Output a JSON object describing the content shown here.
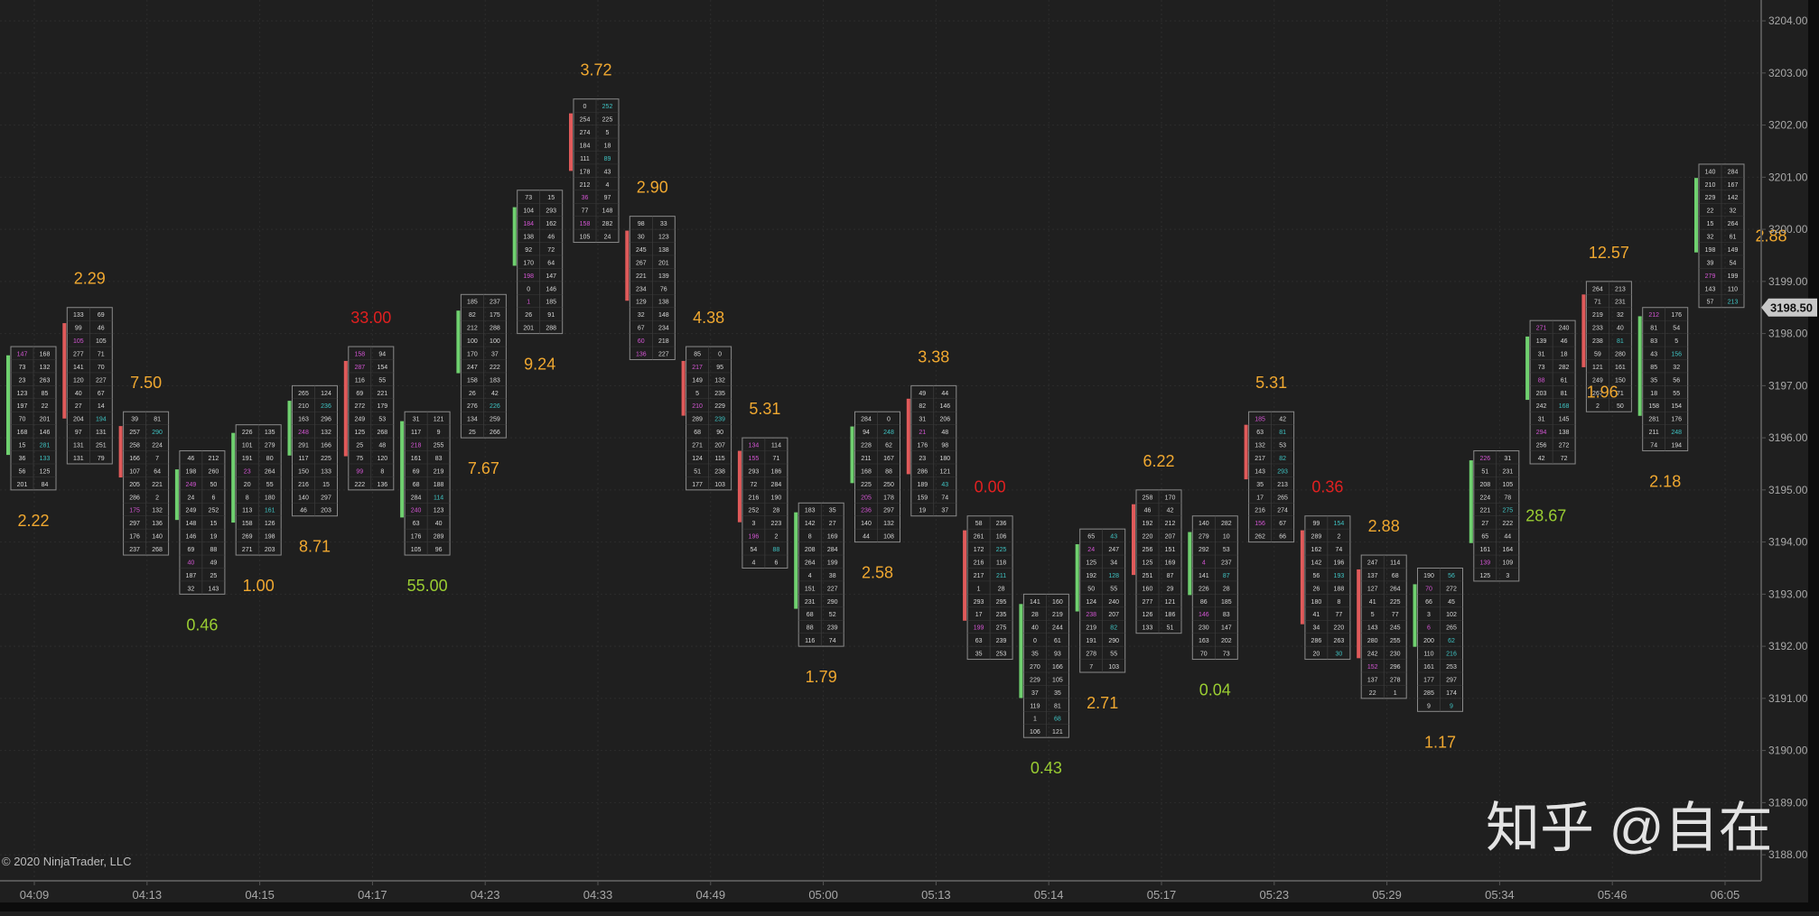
{
  "copyright": "© 2020 NinjaTrader, LLC",
  "watermark": "知乎 @自在",
  "colors": {
    "background": "#1f1f1f",
    "grid": "#2c2c2c",
    "axis": "#555555",
    "axis_text": "#a8a8a8",
    "cell_border": "#8a8a8a",
    "cell_text": "#d8d8d8",
    "bid_highlight": "#d455d4",
    "ask_highlight": "#3fc3c3",
    "up_bar": "#6fd06f",
    "down_bar": "#e05a5a",
    "label_green": "#9acd32",
    "label_orange": "#f0a830",
    "label_red": "#e02020",
    "price_tag_bg": "#c8c8c8",
    "price_tag_text": "#111111"
  },
  "chart_data": {
    "type": "footprint",
    "y_axis": {
      "min": 3187.5,
      "max": 3204.4,
      "ticks": [
        3188.0,
        3189.0,
        3190.0,
        3191.0,
        3192.0,
        3193.0,
        3194.0,
        3195.0,
        3196.0,
        3197.0,
        3198.0,
        3199.0,
        3200.0,
        3201.0,
        3202.0,
        3203.0,
        3204.0
      ],
      "tick_labels": [
        "3188.00",
        "3189.00",
        "3190.00",
        "3191.00",
        "3192.00",
        "3193.00",
        "3194.00",
        "3195.00",
        "3196.00",
        "3197.00",
        "3198.00",
        "3199.00",
        "3200.00",
        "3201.00",
        "3202.00",
        "3203.00",
        "3204.00"
      ],
      "last_price": "3198.50"
    },
    "x_axis": {
      "labels": [
        "04:09",
        "04:13",
        "04:15",
        "04:17",
        "04:23",
        "04:33",
        "04:49",
        "05:00",
        "05:13",
        "05:14",
        "05:17",
        "05:23",
        "05:29",
        "05:34",
        "05:46",
        "06:05"
      ]
    },
    "grid": true,
    "bars": [
      {
        "low": 3195.0,
        "high": 3197.75,
        "direction": "up",
        "label": "2.22",
        "label_pos": "below",
        "label_color": "orange"
      },
      {
        "low": 3195.5,
        "high": 3198.5,
        "direction": "down",
        "label": "2.29",
        "label_pos": "above",
        "label_color": "orange"
      },
      {
        "low": 3193.75,
        "high": 3196.5,
        "direction": "down",
        "label": "7.50",
        "label_pos": "above",
        "label_color": "orange"
      },
      {
        "low": 3193.0,
        "high": 3195.75,
        "direction": "up",
        "label": "0.46",
        "label_pos": "below",
        "label_color": "green"
      },
      {
        "low": 3193.75,
        "high": 3196.25,
        "direction": "up",
        "label": "1.00",
        "label_pos": "below",
        "label_color": "orange"
      },
      {
        "low": 3194.5,
        "high": 3197.0,
        "direction": "up",
        "label": "8.71",
        "label_pos": "below",
        "label_color": "orange"
      },
      {
        "low": 3195.0,
        "high": 3197.75,
        "direction": "down",
        "label": "33.00",
        "label_pos": "above",
        "label_color": "red"
      },
      {
        "low": 3193.75,
        "high": 3196.5,
        "direction": "up",
        "label": "55.00",
        "label_pos": "below",
        "label_color": "green"
      },
      {
        "low": 3196.0,
        "high": 3198.75,
        "direction": "up",
        "label": "7.67",
        "label_pos": "below",
        "label_color": "orange"
      },
      {
        "low": 3198.0,
        "high": 3200.75,
        "direction": "up",
        "label": "9.24",
        "label_pos": "below",
        "label_color": "orange"
      },
      {
        "low": 3199.75,
        "high": 3202.5,
        "direction": "down",
        "label": "3.72",
        "label_pos": "above",
        "label_color": "orange"
      },
      {
        "low": 3197.5,
        "high": 3200.25,
        "direction": "down",
        "label": "2.90",
        "label_pos": "above",
        "label_color": "orange"
      },
      {
        "low": 3195.0,
        "high": 3197.75,
        "direction": "down",
        "label": "4.38",
        "label_pos": "above",
        "label_color": "orange"
      },
      {
        "low": 3193.5,
        "high": 3196.0,
        "direction": "down",
        "label": "5.31",
        "label_pos": "above",
        "label_color": "orange"
      },
      {
        "low": 3192.0,
        "high": 3194.75,
        "direction": "up",
        "label": "1.79",
        "label_pos": "below",
        "label_color": "orange"
      },
      {
        "low": 3194.0,
        "high": 3196.5,
        "direction": "up",
        "label": "2.58",
        "label_pos": "below",
        "label_color": "orange"
      },
      {
        "low": 3194.5,
        "high": 3197.0,
        "direction": "down",
        "label": "3.38",
        "label_pos": "above",
        "label_color": "orange"
      },
      {
        "low": 3191.75,
        "high": 3194.5,
        "direction": "down",
        "label": "0.00",
        "label_pos": "above",
        "label_color": "red"
      },
      {
        "low": 3190.25,
        "high": 3193.0,
        "direction": "up",
        "label": "0.43",
        "label_pos": "below",
        "label_color": "green"
      },
      {
        "low": 3191.5,
        "high": 3194.25,
        "direction": "up",
        "label": "2.71",
        "label_pos": "below",
        "label_color": "orange"
      },
      {
        "low": 3192.25,
        "high": 3195.0,
        "direction": "down",
        "label": "6.22",
        "label_pos": "above",
        "label_color": "orange"
      },
      {
        "low": 3191.75,
        "high": 3194.5,
        "direction": "up",
        "label": "0.04",
        "label_pos": "below",
        "label_color": "green"
      },
      {
        "low": 3194.0,
        "high": 3196.5,
        "direction": "down",
        "label": "5.31",
        "label_pos": "above",
        "label_color": "orange"
      },
      {
        "low": 3191.75,
        "high": 3194.5,
        "direction": "down",
        "label": "0.36",
        "label_pos": "above",
        "label_color": "red"
      },
      {
        "low": 3191.0,
        "high": 3193.75,
        "direction": "down",
        "label": "2.88",
        "label_pos": "above",
        "label_color": "orange"
      },
      {
        "low": 3190.75,
        "high": 3193.5,
        "direction": "up",
        "label": "1.17",
        "label_pos": "below",
        "label_color": "orange"
      },
      {
        "low": 3193.25,
        "high": 3195.75,
        "direction": "up",
        "label": "28.67",
        "label_pos": "right",
        "label_color": "green"
      },
      {
        "low": 3195.5,
        "high": 3198.25,
        "direction": "up",
        "label": "1.96",
        "label_pos": "right",
        "label_color": "orange"
      },
      {
        "low": 3196.5,
        "high": 3199.0,
        "direction": "down",
        "label": "12.57",
        "label_pos": "above",
        "label_color": "orange"
      },
      {
        "low": 3195.75,
        "high": 3198.5,
        "direction": "up",
        "label": "2.18",
        "label_pos": "below",
        "label_color": "orange"
      },
      {
        "low": 3198.5,
        "high": 3201.25,
        "direction": "up",
        "label": "2.88",
        "label_pos": "right",
        "label_color": "orange"
      }
    ]
  }
}
